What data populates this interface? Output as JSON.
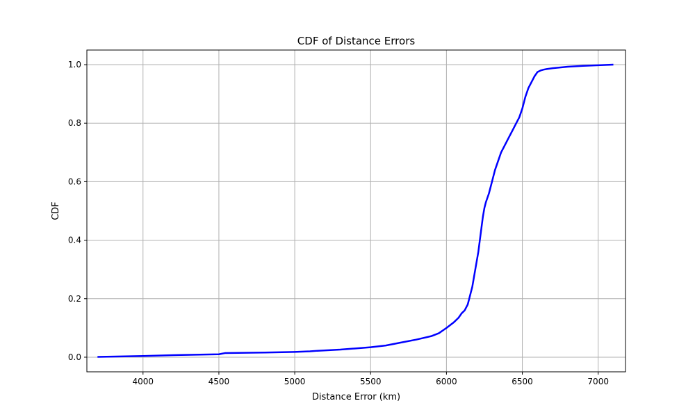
{
  "chart_data": {
    "type": "line",
    "title": "CDF of Distance Errors",
    "xlabel": "Distance Error (km)",
    "ylabel": "CDF",
    "xlim": [
      3630,
      7180
    ],
    "ylim": [
      -0.05,
      1.05
    ],
    "grid": true,
    "xticks": [
      4000,
      4500,
      5000,
      5500,
      6000,
      6500,
      7000
    ],
    "yticks": [
      0.0,
      0.2,
      0.4,
      0.6,
      0.8,
      1.0
    ],
    "ytick_labels": [
      "0.0",
      "0.2",
      "0.4",
      "0.6",
      "0.8",
      "1.0"
    ],
    "series": [
      {
        "color": "#0000ff",
        "x": [
          3700,
          4000,
          4200,
          4500,
          4520,
          4540,
          4800,
          5000,
          5100,
          5150,
          5300,
          5400,
          5500,
          5600,
          5650,
          5700,
          5800,
          5850,
          5900,
          5950,
          6000,
          6050,
          6080,
          6100,
          6120,
          6140,
          6150,
          6160,
          6170,
          6180,
          6190,
          6200,
          6210,
          6220,
          6230,
          6240,
          6250,
          6260,
          6280,
          6300,
          6320,
          6340,
          6360,
          6380,
          6400,
          6420,
          6440,
          6460,
          6480,
          6500,
          6510,
          6520,
          6540,
          6560,
          6580,
          6600,
          6620,
          6640,
          6660,
          6700,
          6800,
          6900,
          7000,
          7100
        ],
        "y": [
          0.001,
          0.004,
          0.007,
          0.01,
          0.012,
          0.014,
          0.016,
          0.018,
          0.02,
          0.022,
          0.026,
          0.03,
          0.034,
          0.04,
          0.045,
          0.05,
          0.06,
          0.066,
          0.072,
          0.082,
          0.1,
          0.12,
          0.135,
          0.15,
          0.16,
          0.18,
          0.2,
          0.22,
          0.24,
          0.27,
          0.3,
          0.33,
          0.36,
          0.4,
          0.44,
          0.48,
          0.51,
          0.53,
          0.56,
          0.6,
          0.64,
          0.67,
          0.7,
          0.72,
          0.74,
          0.76,
          0.78,
          0.8,
          0.82,
          0.85,
          0.87,
          0.89,
          0.92,
          0.94,
          0.96,
          0.975,
          0.98,
          0.983,
          0.985,
          0.988,
          0.993,
          0.996,
          0.998,
          1.0
        ]
      }
    ]
  }
}
